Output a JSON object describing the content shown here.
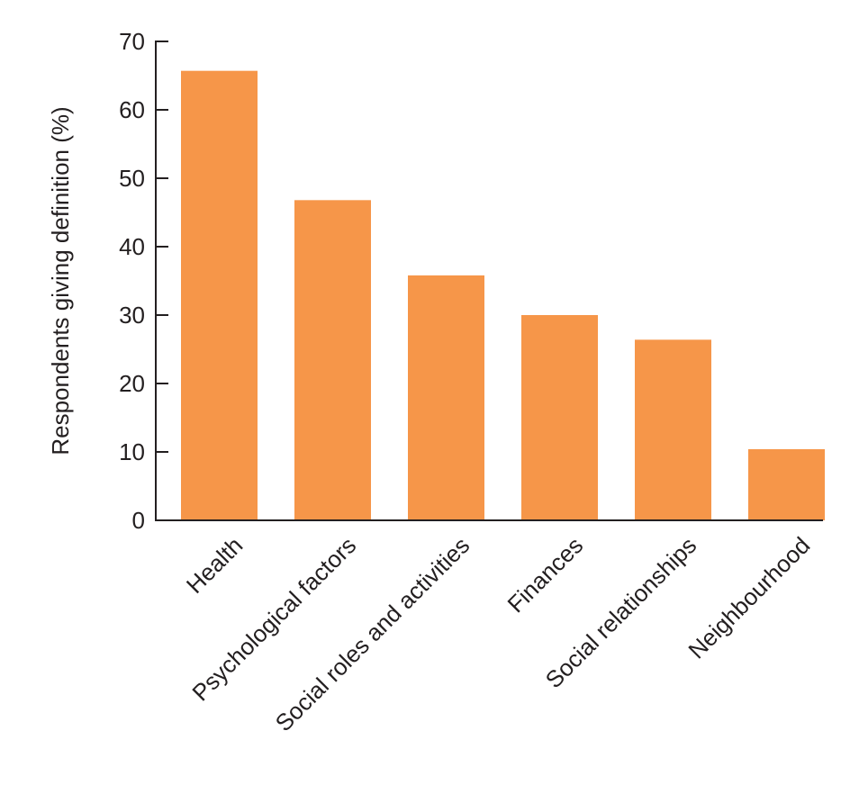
{
  "chart_data": {
    "type": "bar",
    "title": "",
    "xlabel": "",
    "ylabel": "Respondents giving definition (%)",
    "categories": [
      "Health",
      "Psychological factors",
      "Social roles and activities",
      "Finances",
      "Social relationships",
      "Neighbourhood"
    ],
    "values": [
      65.7,
      46.8,
      35.8,
      30.0,
      26.4,
      10.4
    ],
    "ylim": [
      0,
      70
    ],
    "yticks": [
      0,
      10,
      20,
      30,
      40,
      50,
      60,
      70
    ],
    "grid": false,
    "legend": "none",
    "bar_color": "#f69649",
    "axis_color": "#231f20"
  }
}
